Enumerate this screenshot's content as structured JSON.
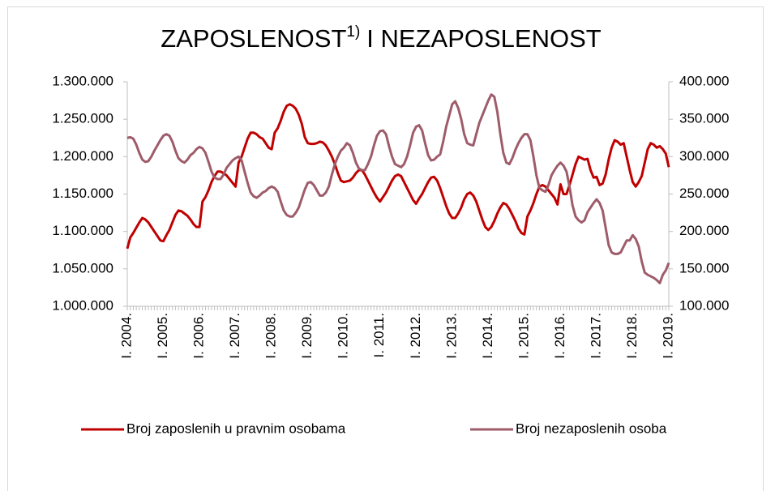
{
  "chart_data": {
    "type": "line",
    "title": "ZAPOSLENOST",
    "title_superscript": "1)",
    "title_end": "I NEZAPOSLENOST",
    "categories": [
      "I. 2004.",
      null,
      null,
      null,
      null,
      null,
      null,
      null,
      null,
      null,
      null,
      null,
      "I. 2005.",
      null,
      null,
      null,
      null,
      null,
      null,
      null,
      null,
      null,
      null,
      null,
      "I. 2006.",
      null,
      null,
      null,
      null,
      null,
      null,
      null,
      null,
      null,
      null,
      null,
      "I. 2007.",
      null,
      null,
      null,
      null,
      null,
      null,
      null,
      null,
      null,
      null,
      null,
      "I. 2008.",
      null,
      null,
      null,
      null,
      null,
      null,
      null,
      null,
      null,
      null,
      null,
      "I. 2009.",
      null,
      null,
      null,
      null,
      null,
      null,
      null,
      null,
      null,
      null,
      null,
      "I. 2010.",
      null,
      null,
      null,
      null,
      null,
      null,
      null,
      null,
      null,
      null,
      null,
      "I. 2011.",
      null,
      null,
      null,
      null,
      null,
      null,
      null,
      null,
      null,
      null,
      null,
      "I. 2012.",
      null,
      null,
      null,
      null,
      null,
      null,
      null,
      null,
      null,
      null,
      null,
      "I. 2013.",
      null,
      null,
      null,
      null,
      null,
      null,
      null,
      null,
      null,
      null,
      null,
      "I. 2014.",
      null,
      null,
      null,
      null,
      null,
      null,
      null,
      null,
      null,
      null,
      null,
      "I. 2015.",
      null,
      null,
      null,
      null,
      null,
      null,
      null,
      null,
      null,
      null,
      null,
      "I. 2016.",
      null,
      null,
      null,
      null,
      null,
      null,
      null,
      null,
      null,
      null,
      null,
      "I. 2017.",
      null,
      null,
      null,
      null,
      null,
      null,
      null,
      null,
      null,
      null,
      null,
      "I. 2018.",
      null,
      null,
      null,
      null,
      null,
      null,
      null,
      null,
      null,
      null,
      null,
      "I. 2019."
    ],
    "series": [
      {
        "name": "Broj zaposlenih u pravnim osobama",
        "color": "#c00000",
        "axis": "y",
        "values": [
          1077000,
          1092000,
          1098000,
          1105000,
          1112000,
          1118000,
          1116000,
          1112000,
          1106000,
          1100000,
          1094000,
          1088000,
          1087000,
          1095000,
          1102000,
          1112000,
          1122000,
          1128000,
          1127000,
          1124000,
          1121000,
          1116000,
          1110000,
          1106000,
          1106000,
          1140000,
          1146000,
          1155000,
          1166000,
          1174000,
          1180000,
          1180000,
          1178000,
          1175000,
          1170000,
          1165000,
          1160000,
          1192000,
          1200000,
          1212000,
          1224000,
          1232000,
          1232000,
          1230000,
          1226000,
          1224000,
          1218000,
          1212000,
          1210000,
          1232000,
          1238000,
          1248000,
          1260000,
          1268000,
          1270000,
          1268000,
          1264000,
          1256000,
          1244000,
          1226000,
          1218000,
          1217000,
          1217000,
          1218000,
          1220000,
          1219000,
          1215000,
          1208000,
          1200000,
          1190000,
          1178000,
          1168000,
          1166000,
          1167000,
          1168000,
          1172000,
          1178000,
          1182000,
          1182000,
          1176000,
          1168000,
          1160000,
          1152000,
          1145000,
          1140000,
          1146000,
          1152000,
          1160000,
          1168000,
          1174000,
          1176000,
          1174000,
          1166000,
          1158000,
          1150000,
          1142000,
          1137000,
          1144000,
          1150000,
          1158000,
          1166000,
          1172000,
          1173000,
          1168000,
          1158000,
          1146000,
          1134000,
          1124000,
          1118000,
          1118000,
          1124000,
          1132000,
          1143000,
          1150000,
          1152000,
          1148000,
          1140000,
          1128000,
          1116000,
          1106000,
          1102000,
          1106000,
          1114000,
          1124000,
          1132000,
          1138000,
          1136000,
          1130000,
          1122000,
          1114000,
          1104000,
          1098000,
          1096000,
          1120000,
          1128000,
          1138000,
          1150000,
          1160000,
          1162000,
          1160000,
          1155000,
          1150000,
          1145000,
          1136000,
          1163000,
          1150000,
          1150000,
          1162000,
          1176000,
          1190000,
          1200000,
          1198000,
          1196000,
          1197000,
          1182000,
          1172000,
          1173000,
          1162000,
          1164000,
          1176000,
          1196000,
          1212000,
          1222000,
          1220000,
          1216000,
          1218000,
          1200000,
          1182000,
          1166000,
          1160000,
          1166000,
          1174000,
          1192000,
          1210000,
          1218000,
          1216000,
          1212000,
          1214000,
          1210000,
          1204000,
          1186000
        ]
      },
      {
        "name": "Broj nezaposlenih osoba",
        "color": "#9e5c6b",
        "axis": "y2",
        "values": [
          325000,
          326000,
          324000,
          316000,
          305000,
          296000,
          293000,
          294000,
          300000,
          308000,
          315000,
          322000,
          328000,
          330000,
          328000,
          320000,
          308000,
          298000,
          294000,
          292000,
          296000,
          302000,
          305000,
          310000,
          313000,
          311000,
          305000,
          293000,
          280000,
          272000,
          270000,
          270000,
          276000,
          285000,
          290000,
          295000,
          298000,
          300000,
          295000,
          280000,
          265000,
          252000,
          247000,
          245000,
          248000,
          252000,
          254000,
          258000,
          260000,
          258000,
          253000,
          240000,
          228000,
          222000,
          220000,
          220000,
          225000,
          232000,
          244000,
          256000,
          265000,
          266000,
          262000,
          255000,
          248000,
          248000,
          252000,
          260000,
          276000,
          290000,
          300000,
          308000,
          312000,
          318000,
          315000,
          305000,
          292000,
          284000,
          282000,
          282000,
          290000,
          300000,
          315000,
          328000,
          334000,
          335000,
          330000,
          314000,
          300000,
          290000,
          288000,
          286000,
          290000,
          300000,
          315000,
          332000,
          340000,
          342000,
          335000,
          318000,
          302000,
          295000,
          296000,
          300000,
          303000,
          320000,
          340000,
          355000,
          370000,
          374000,
          365000,
          350000,
          330000,
          318000,
          316000,
          315000,
          330000,
          345000,
          355000,
          365000,
          375000,
          383000,
          380000,
          360000,
          330000,
          305000,
          292000,
          290000,
          298000,
          309000,
          318000,
          325000,
          330000,
          330000,
          322000,
          300000,
          275000,
          258000,
          255000,
          253000,
          262000,
          275000,
          282000,
          288000,
          292000,
          288000,
          280000,
          260000,
          235000,
          220000,
          215000,
          212000,
          215000,
          226000,
          232000,
          238000,
          243000,
          238000,
          228000,
          205000,
          182000,
          172000,
          170000,
          170000,
          172000,
          180000,
          188000,
          188000,
          195000,
          190000,
          180000,
          160000,
          145000,
          142000,
          140000,
          138000,
          135000,
          131000,
          142000,
          148000,
          158000
        ]
      }
    ],
    "ylim": [
      1000000,
      1300000
    ],
    "yticks": [
      {
        "value": 1000000,
        "label": "1.000.000"
      },
      {
        "value": 1050000,
        "label": "1.050.000"
      },
      {
        "value": 1100000,
        "label": "1.100.000"
      },
      {
        "value": 1150000,
        "label": "1.150.000"
      },
      {
        "value": 1200000,
        "label": "1.200.000"
      },
      {
        "value": 1250000,
        "label": "1.250.000"
      },
      {
        "value": 1300000,
        "label": "1.300.000"
      }
    ],
    "y2lim": [
      100000,
      400000
    ],
    "y2ticks": [
      {
        "value": 100000,
        "label": "100.000"
      },
      {
        "value": 150000,
        "label": "150.000"
      },
      {
        "value": 200000,
        "label": "200.000"
      },
      {
        "value": 250000,
        "label": "250.000"
      },
      {
        "value": 300000,
        "label": "300.000"
      },
      {
        "value": 350000,
        "label": "350.000"
      },
      {
        "value": 400000,
        "label": "400.000"
      }
    ],
    "grid": false,
    "legend": "bottom"
  }
}
